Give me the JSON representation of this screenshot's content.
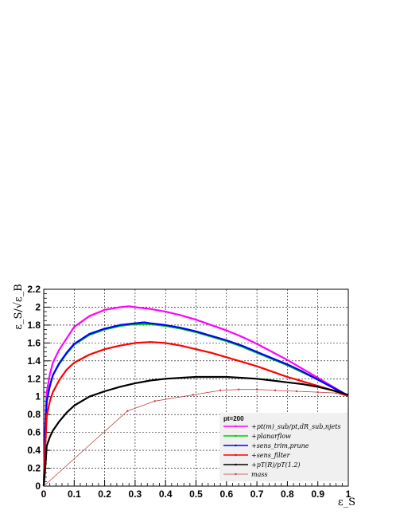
{
  "chart_data": {
    "type": "line",
    "xlabel": "ε_S",
    "ylabel": "ε_S/√ε_B",
    "xlim": [
      0,
      1
    ],
    "ylim": [
      0,
      2.2
    ],
    "x_ticks": [
      "0",
      "0.1",
      "0.2",
      "0.3",
      "0.4",
      "0.5",
      "0.6",
      "0.7",
      "0.8",
      "0.9",
      "1"
    ],
    "y_ticks": [
      "0",
      "0.2",
      "0.4",
      "0.6",
      "0.8",
      "1",
      "1.2",
      "1.4",
      "1.6",
      "1.8",
      "2",
      "2.2"
    ],
    "grid": true,
    "legend": {
      "placement": "bottom-right",
      "header": "pt=200"
    },
    "series": [
      {
        "name": "+pt(m)_sub/pt,dR_sub,njets",
        "color": "#ff00ff",
        "x": [
          0.0,
          0.005,
          0.01,
          0.02,
          0.03,
          0.05,
          0.075,
          0.1,
          0.15,
          0.2,
          0.25,
          0.28,
          0.3,
          0.35,
          0.4,
          0.45,
          0.5,
          0.55,
          0.6,
          0.65,
          0.7,
          0.75,
          0.8,
          0.85,
          0.9,
          0.95,
          1.0
        ],
        "y": [
          0.0,
          0.7,
          1.05,
          1.25,
          1.38,
          1.52,
          1.65,
          1.78,
          1.9,
          1.97,
          2.0,
          2.01,
          2.0,
          1.98,
          1.95,
          1.91,
          1.86,
          1.8,
          1.74,
          1.67,
          1.59,
          1.5,
          1.41,
          1.31,
          1.21,
          1.11,
          1.01
        ]
      },
      {
        "name": "+planarflow",
        "color": "#00cc00",
        "x": [
          0.0,
          0.005,
          0.01,
          0.02,
          0.03,
          0.05,
          0.075,
          0.1,
          0.15,
          0.2,
          0.25,
          0.3,
          0.35,
          0.4,
          0.45,
          0.5,
          0.55,
          0.6,
          0.65,
          0.7,
          0.75,
          0.8,
          0.85,
          0.9,
          0.95,
          1.0
        ],
        "y": [
          0.0,
          0.6,
          0.95,
          1.12,
          1.24,
          1.36,
          1.48,
          1.58,
          1.69,
          1.75,
          1.79,
          1.81,
          1.81,
          1.79,
          1.76,
          1.72,
          1.67,
          1.62,
          1.56,
          1.49,
          1.42,
          1.35,
          1.27,
          1.19,
          1.1,
          1.01
        ]
      },
      {
        "name": "+sens_trim,prune",
        "color": "#0000ff",
        "x": [
          0.0,
          0.005,
          0.01,
          0.02,
          0.03,
          0.05,
          0.075,
          0.1,
          0.15,
          0.2,
          0.25,
          0.3,
          0.33,
          0.35,
          0.4,
          0.45,
          0.5,
          0.55,
          0.6,
          0.65,
          0.7,
          0.75,
          0.8,
          0.85,
          0.9,
          0.95,
          1.0
        ],
        "y": [
          0.0,
          0.6,
          0.95,
          1.12,
          1.24,
          1.37,
          1.49,
          1.59,
          1.7,
          1.76,
          1.8,
          1.82,
          1.83,
          1.82,
          1.8,
          1.77,
          1.73,
          1.68,
          1.63,
          1.57,
          1.5,
          1.43,
          1.36,
          1.28,
          1.19,
          1.1,
          1.01
        ]
      },
      {
        "name": "+sens_filter",
        "color": "#ff0000",
        "x": [
          0.0,
          0.005,
          0.01,
          0.02,
          0.03,
          0.05,
          0.075,
          0.1,
          0.15,
          0.2,
          0.25,
          0.3,
          0.35,
          0.4,
          0.45,
          0.5,
          0.55,
          0.6,
          0.65,
          0.7,
          0.75,
          0.8,
          0.85,
          0.9,
          0.95,
          1.0
        ],
        "y": [
          0.0,
          0.45,
          0.78,
          0.95,
          1.05,
          1.18,
          1.3,
          1.38,
          1.47,
          1.53,
          1.57,
          1.6,
          1.61,
          1.6,
          1.57,
          1.53,
          1.49,
          1.44,
          1.39,
          1.34,
          1.28,
          1.22,
          1.17,
          1.12,
          1.07,
          1.01
        ]
      },
      {
        "name": "+pT(R)/pT(1.2)",
        "color": "#000000",
        "x": [
          0.0,
          0.005,
          0.01,
          0.02,
          0.03,
          0.05,
          0.075,
          0.1,
          0.15,
          0.2,
          0.25,
          0.3,
          0.35,
          0.4,
          0.45,
          0.5,
          0.55,
          0.6,
          0.65,
          0.7,
          0.75,
          0.8,
          0.85,
          0.9,
          0.95,
          1.0
        ],
        "y": [
          0.0,
          0.2,
          0.45,
          0.55,
          0.62,
          0.72,
          0.82,
          0.9,
          1.0,
          1.06,
          1.11,
          1.15,
          1.18,
          1.2,
          1.21,
          1.22,
          1.22,
          1.22,
          1.21,
          1.2,
          1.18,
          1.16,
          1.14,
          1.11,
          1.07,
          1.02
        ]
      },
      {
        "name": "mass",
        "color": "#c04040",
        "x": [
          0.0,
          0.275,
          0.365,
          0.49,
          0.58,
          0.64,
          0.7,
          0.76,
          0.83,
          0.9,
          0.96,
          1.0
        ],
        "y": [
          0.0,
          0.84,
          0.95,
          1.02,
          1.07,
          1.08,
          1.08,
          1.07,
          1.06,
          1.05,
          1.04,
          1.0
        ]
      }
    ]
  }
}
